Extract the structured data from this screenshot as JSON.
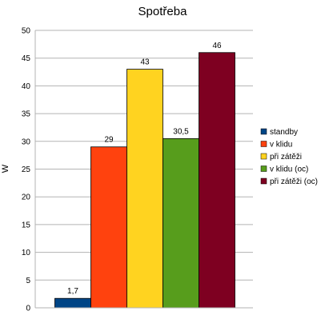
{
  "chart_data": {
    "type": "bar",
    "title": "Spotřeba",
    "ylabel": "W",
    "xlabel": "",
    "ylim": [
      0,
      50
    ],
    "yticks": [
      0,
      5,
      10,
      15,
      20,
      25,
      30,
      35,
      40,
      45,
      50
    ],
    "grid": true,
    "legend_position": "right",
    "series": [
      {
        "name": "standby",
        "value": 1.7,
        "label": "1,7",
        "color": "#004586"
      },
      {
        "name": "v klidu",
        "value": 29,
        "label": "29",
        "color": "#FF420E"
      },
      {
        "name": "při zátěži",
        "value": 43,
        "label": "43",
        "color": "#FFD320"
      },
      {
        "name": "v klidu (oc)",
        "value": 30.5,
        "label": "30,5",
        "color": "#579D1C"
      },
      {
        "name": "při zátěži (oc)",
        "value": 46,
        "label": "46",
        "color": "#7E0021"
      }
    ]
  }
}
